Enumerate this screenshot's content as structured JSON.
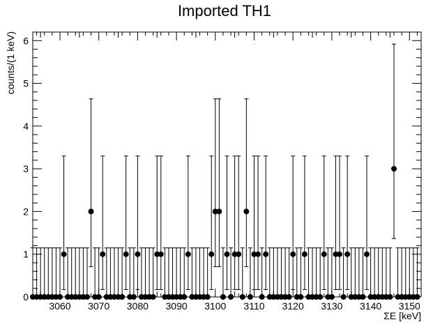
{
  "chart_data": {
    "type": "scatter",
    "title": "Imported TH1",
    "xlabel": "ΣE [keV]",
    "ylabel": "counts/(1 keV)",
    "xlim": [
      3053,
      3153
    ],
    "ylim": [
      0,
      6.2
    ],
    "x_ticks": [
      3060,
      3070,
      3080,
      3090,
      3100,
      3110,
      3120,
      3130,
      3140,
      3150
    ],
    "y_ticks": [
      0,
      1,
      2,
      3,
      4,
      5,
      6
    ],
    "error_bars": "poisson",
    "legend": "none",
    "grid": false,
    "x": [
      3053,
      3054,
      3055,
      3056,
      3057,
      3058,
      3059,
      3060,
      3061,
      3062,
      3063,
      3064,
      3065,
      3066,
      3067,
      3068,
      3069,
      3070,
      3071,
      3072,
      3073,
      3074,
      3075,
      3076,
      3077,
      3078,
      3079,
      3080,
      3081,
      3082,
      3083,
      3084,
      3085,
      3086,
      3087,
      3088,
      3089,
      3090,
      3091,
      3092,
      3093,
      3094,
      3095,
      3096,
      3097,
      3098,
      3099,
      3100,
      3101,
      3102,
      3103,
      3104,
      3105,
      3106,
      3107,
      3108,
      3109,
      3110,
      3111,
      3112,
      3113,
      3114,
      3115,
      3116,
      3117,
      3118,
      3119,
      3120,
      3121,
      3122,
      3123,
      3124,
      3125,
      3126,
      3127,
      3128,
      3129,
      3130,
      3131,
      3132,
      3133,
      3134,
      3135,
      3136,
      3137,
      3138,
      3139,
      3140,
      3141,
      3142,
      3143,
      3144,
      3145,
      3146,
      3147,
      3148,
      3149,
      3150,
      3151,
      3152
    ],
    "values": [
      0,
      0,
      0,
      0,
      0,
      0,
      0,
      0,
      1,
      0,
      0,
      0,
      0,
      0,
      0,
      2,
      0,
      0,
      1,
      0,
      0,
      0,
      0,
      0,
      1,
      0,
      0,
      1,
      0,
      0,
      0,
      0,
      1,
      1,
      0,
      0,
      0,
      0,
      0,
      0,
      1,
      0,
      0,
      0,
      0,
      0,
      1,
      2,
      2,
      0,
      1,
      0,
      1,
      1,
      0,
      2,
      0,
      1,
      1,
      0,
      1,
      0,
      0,
      0,
      0,
      0,
      0,
      1,
      0,
      0,
      1,
      0,
      0,
      0,
      0,
      1,
      0,
      0,
      1,
      1,
      0,
      1,
      0,
      0,
      0,
      0,
      1,
      0,
      0,
      0,
      0,
      0,
      0,
      3,
      0,
      0,
      0,
      0,
      0,
      0
    ]
  }
}
